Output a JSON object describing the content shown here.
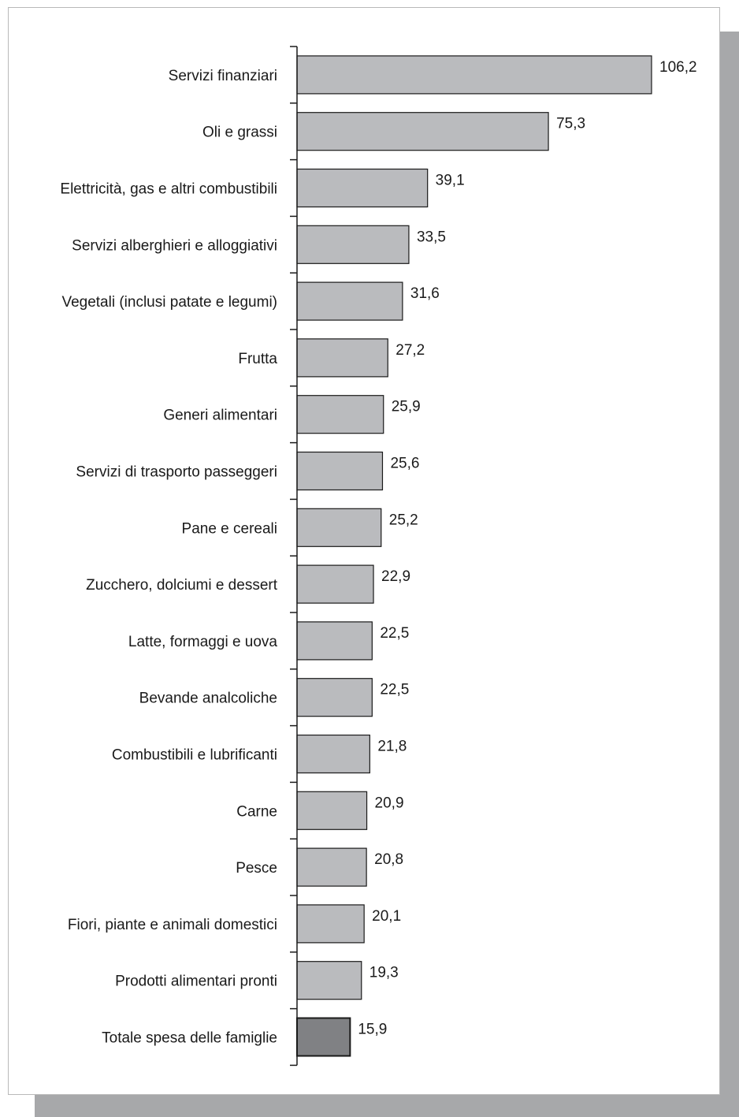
{
  "colors": {
    "bar_fill": "#babbbe",
    "highlight_fill": "#808184",
    "bar_stroke": "#1a1a1a",
    "shadow": "#a7a8aa"
  },
  "chart_data": {
    "type": "bar",
    "orientation": "horizontal",
    "title": "",
    "xlabel": "",
    "ylabel": "",
    "xlim": [
      0,
      106.2
    ],
    "grid": false,
    "legend": "none",
    "highlight_category": "Totale spesa delle famiglie",
    "categories": [
      "Servizi finanziari",
      "Oli e grassi",
      "Elettricità, gas e altri combustibili",
      "Servizi alberghieri e alloggiativi",
      "Vegetali (inclusi patate e legumi)",
      "Frutta",
      "Generi alimentari",
      "Servizi di trasporto passeggeri",
      "Pane e cereali",
      "Zucchero, dolciumi e dessert",
      "Latte, formaggi e uova",
      "Bevande analcoliche",
      "Combustibili e lubrificanti",
      "Carne",
      "Pesce",
      "Fiori, piante e animali domestici",
      "Prodotti alimentari pronti",
      "Totale spesa delle famiglie"
    ],
    "values": [
      106.2,
      75.3,
      39.1,
      33.5,
      31.6,
      27.2,
      25.9,
      25.6,
      25.2,
      22.9,
      22.5,
      22.5,
      21.8,
      20.9,
      20.8,
      20.1,
      19.3,
      15.9
    ],
    "value_labels": [
      "106,2",
      "75,3",
      "39,1",
      "33,5",
      "31,6",
      "27,2",
      "25,9",
      "25,6",
      "25,2",
      "22,9",
      "22,5",
      "22,5",
      "21,8",
      "20,9",
      "20,8",
      "20,1",
      "19,3",
      "15,9"
    ]
  }
}
